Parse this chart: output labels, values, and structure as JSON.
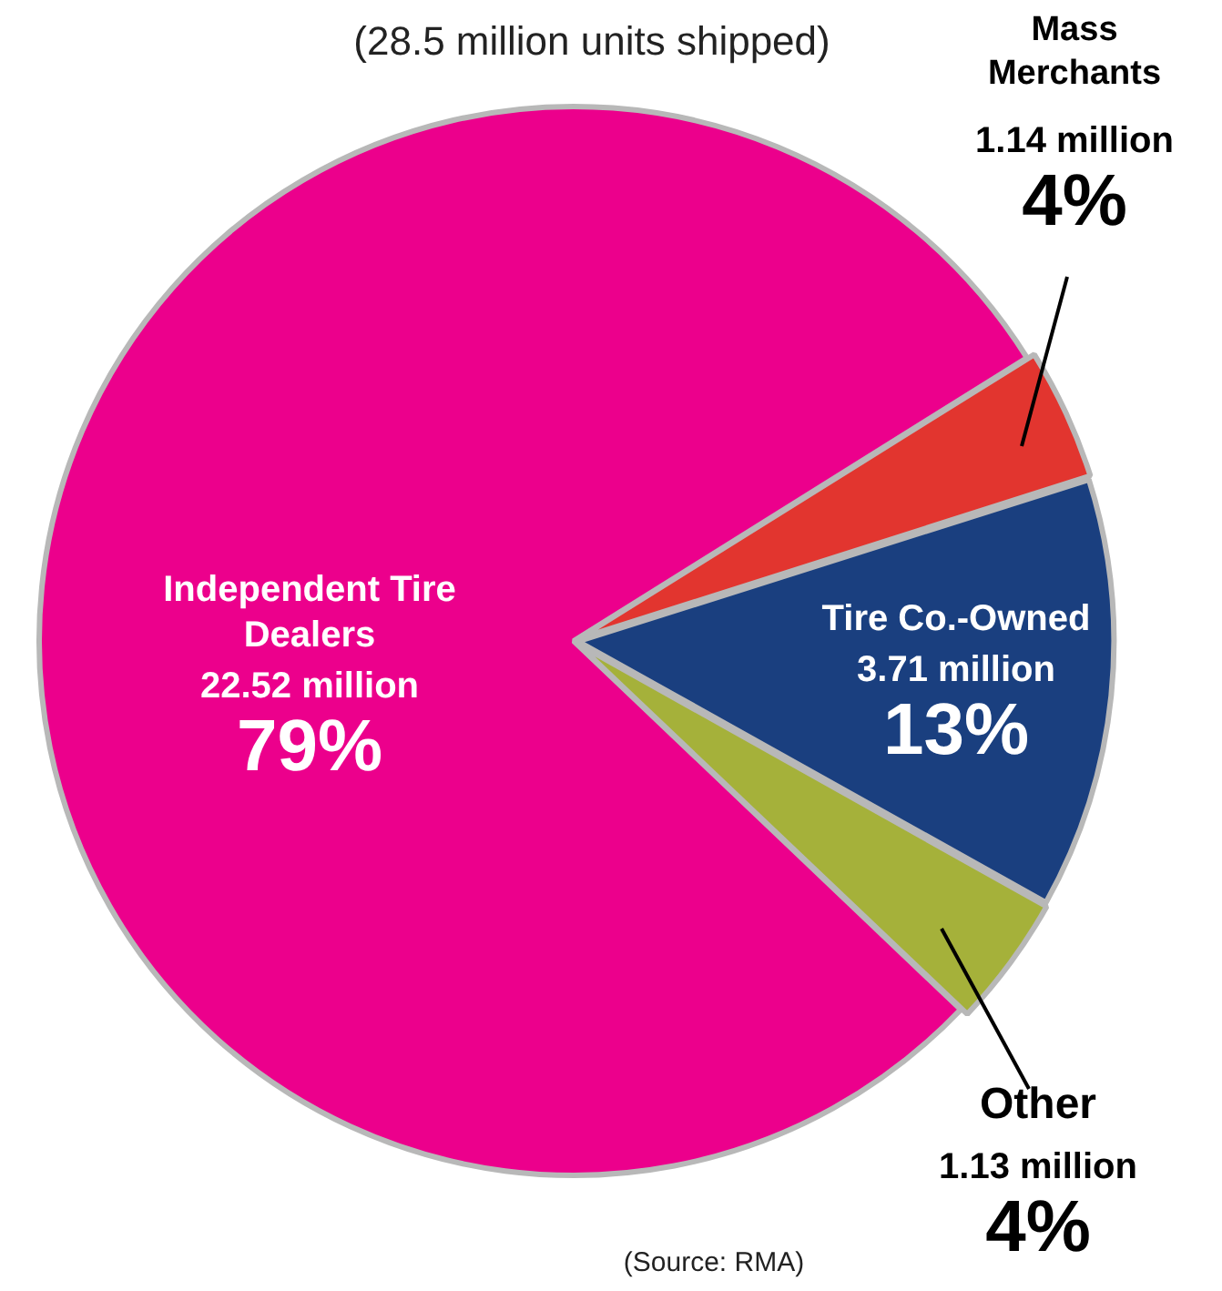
{
  "chart_data": {
    "type": "pie",
    "subtitle": "(28.5 million units shipped)",
    "categories": [
      "Independent Tire Dealers",
      "Mass Merchants",
      "Tire Co.-Owned",
      "Other"
    ],
    "values": [
      79,
      4,
      13,
      4
    ],
    "value_labels": [
      "22.52 million\n79%",
      "1.14 million\n4%",
      "3.71 million\n13%",
      "1.13 million\n4%"
    ],
    "colors": [
      "#ec008c",
      "#e2352f",
      "#1a3f7f",
      "#a5b13a"
    ],
    "annotations": [
      "(Source: RMA)"
    ]
  }
}
